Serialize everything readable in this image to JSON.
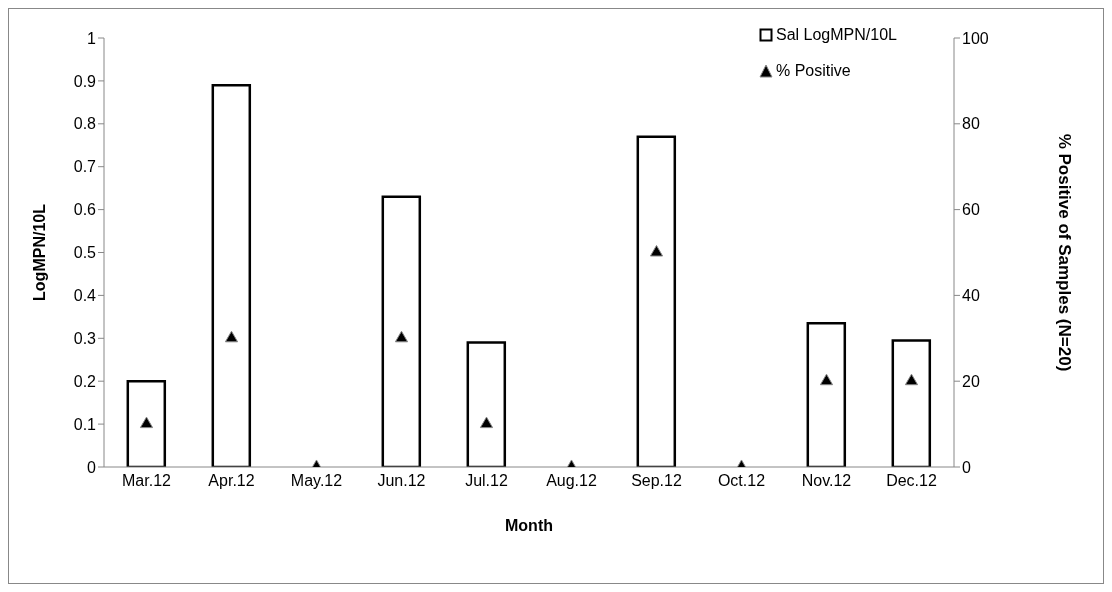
{
  "chart_data": {
    "type": "bar",
    "categories": [
      "Mar.12",
      "Apr.12",
      "May.12",
      "Jun.12",
      "Jul.12",
      "Aug.12",
      "Sep.12",
      "Oct.12",
      "Nov.12",
      "Dec.12"
    ],
    "series": [
      {
        "name": "Sal LogMPN/10L",
        "color": "#000000",
        "values": [
          0.2,
          0.89,
          0,
          0.63,
          0.29,
          0,
          0.77,
          0,
          0.335,
          0.295
        ]
      },
      {
        "name": "% Positive",
        "type": "scatter",
        "axis": "y2",
        "marker": "triangle",
        "color": "#000000",
        "values": [
          10,
          30,
          0,
          30,
          10,
          0,
          50,
          0,
          20,
          20
        ]
      }
    ],
    "xlabel": "Month",
    "ylabel": "LogMPN/10L",
    "y2label": "% Positive of Samples (N=20)",
    "ylim": [
      0,
      1
    ],
    "yticks": [
      0,
      0.1,
      0.2,
      0.3,
      0.4,
      0.5,
      0.6,
      0.7,
      0.8,
      0.9,
      1
    ],
    "y2lim": [
      0,
      100
    ],
    "y2ticks": [
      0,
      20,
      40,
      60,
      80,
      100
    ],
    "grid": false,
    "legend": "top right"
  }
}
